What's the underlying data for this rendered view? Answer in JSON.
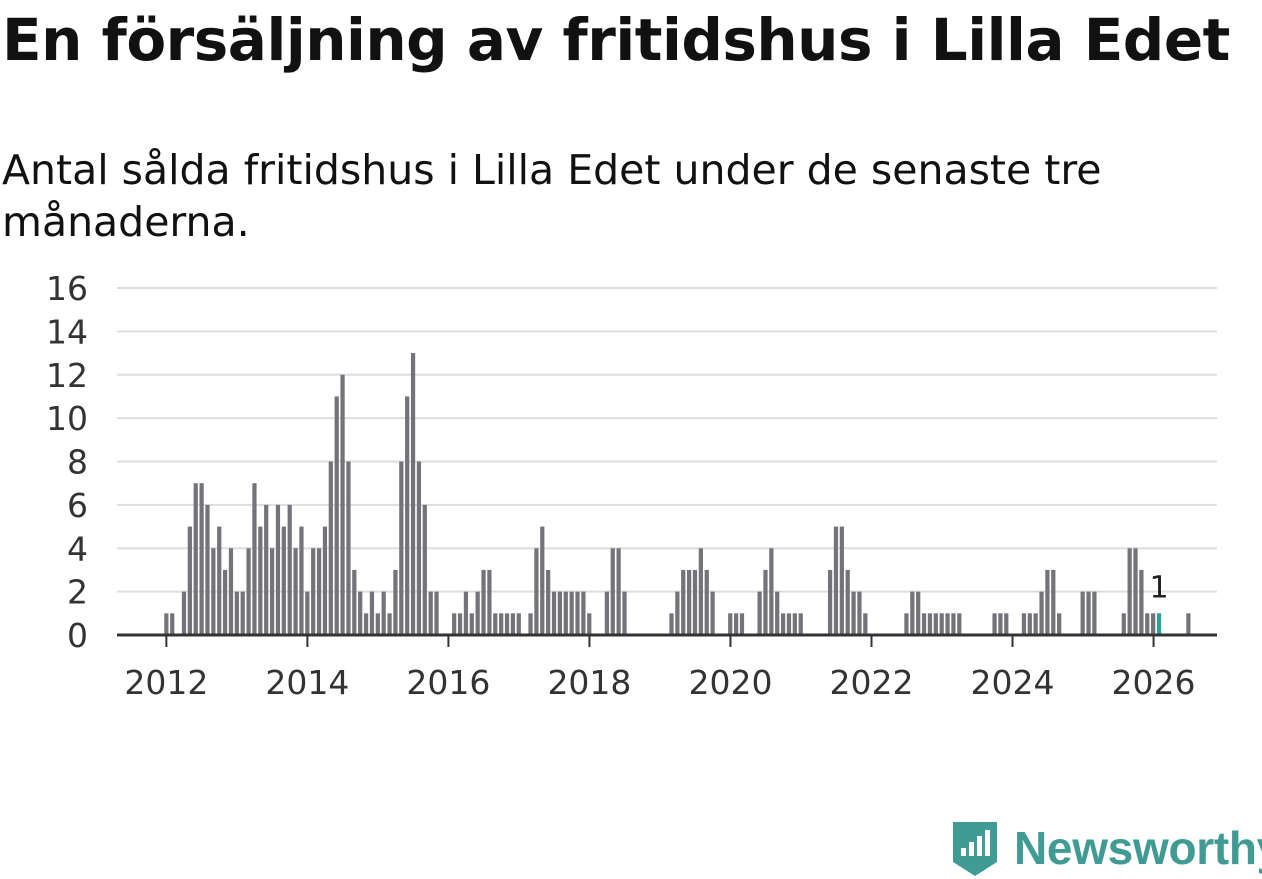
{
  "header": {
    "title": "En försäljning av fritidshus i Lilla Edet",
    "subtitle": "Antal sålda fritidshus i Lilla Edet under de senaste tre månaderna."
  },
  "branding": {
    "name": "Newsworthy"
  },
  "colors": {
    "bar": "#74737a",
    "highlight": "#2ba197",
    "grid": "#dddddd",
    "axis": "#333333",
    "brand": "#3f9b94"
  },
  "chart_data": {
    "type": "bar",
    "title": "En försäljning av fritidshus i Lilla Edet",
    "subtitle": "Antal sålda fritidshus i Lilla Edet under de senaste tre månaderna.",
    "xlabel": "",
    "ylabel": "",
    "x_start": 2012.0,
    "x_step": 0.0833,
    "xlim": [
      2011.3,
      2026.9
    ],
    "ylim": [
      0,
      16
    ],
    "yticks": [
      0,
      2,
      4,
      6,
      8,
      10,
      12,
      14,
      16
    ],
    "xticks": [
      2012,
      2014,
      2016,
      2018,
      2020,
      2022,
      2024,
      2026
    ],
    "grid": true,
    "values": [
      1,
      1,
      0,
      2,
      5,
      7,
      7,
      6,
      4,
      5,
      3,
      4,
      2,
      2,
      4,
      7,
      5,
      6,
      4,
      6,
      5,
      6,
      4,
      5,
      2,
      4,
      4,
      5,
      8,
      11,
      12,
      8,
      3,
      2,
      1,
      2,
      1,
      2,
      1,
      3,
      8,
      11,
      13,
      8,
      6,
      2,
      2,
      0,
      0,
      1,
      1,
      2,
      1,
      2,
      3,
      3,
      1,
      1,
      1,
      1,
      1,
      0,
      1,
      4,
      5,
      3,
      2,
      2,
      2,
      2,
      2,
      2,
      1,
      0,
      0,
      2,
      4,
      4,
      2,
      0,
      0,
      0,
      0,
      0,
      0,
      0,
      1,
      2,
      3,
      3,
      3,
      4,
      3,
      2,
      0,
      0,
      1,
      1,
      1,
      0,
      0,
      2,
      3,
      4,
      2,
      1,
      1,
      1,
      1,
      0,
      0,
      0,
      0,
      3,
      5,
      5,
      3,
      2,
      2,
      1,
      0,
      0,
      0,
      0,
      0,
      0,
      1,
      2,
      2,
      1,
      1,
      1,
      1,
      1,
      1,
      1,
      0,
      0,
      0,
      0,
      0,
      1,
      1,
      1,
      0,
      0,
      1,
      1,
      1,
      2,
      3,
      3,
      1,
      0,
      0,
      0,
      2,
      2,
      2,
      0,
      0,
      0,
      0,
      1,
      4,
      4,
      3,
      1,
      1,
      1,
      0,
      0,
      0,
      0,
      1
    ],
    "highlight": {
      "index": 169,
      "value": 1,
      "label": "1"
    }
  }
}
